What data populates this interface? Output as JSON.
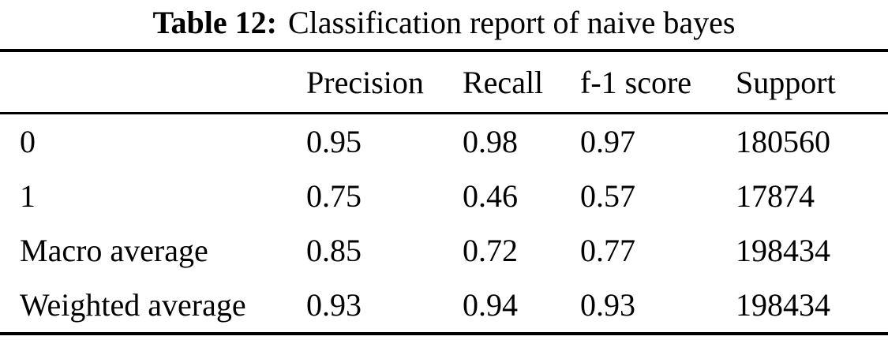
{
  "caption": {
    "label": "Table 12:",
    "text": "Classification report of naive bayes"
  },
  "table": {
    "headers": {
      "rowlabel": "",
      "precision": "Precision",
      "recall": "Recall",
      "f1": "f-1 score",
      "support": "Support"
    },
    "rows": [
      {
        "label": "0",
        "precision": "0.95",
        "recall": "0.98",
        "f1": "0.97",
        "support": "180560"
      },
      {
        "label": "1",
        "precision": "0.75",
        "recall": "0.46",
        "f1": "0.57",
        "support": "17874"
      },
      {
        "label": "Macro average",
        "precision": "0.85",
        "recall": "0.72",
        "f1": "0.77",
        "support": "198434"
      },
      {
        "label": "Weighted average",
        "precision": "0.93",
        "recall": "0.94",
        "f1": "0.93",
        "support": "198434"
      }
    ]
  },
  "colors": {
    "text": "#000000",
    "background": "#ffffff",
    "rule": "#000000"
  }
}
